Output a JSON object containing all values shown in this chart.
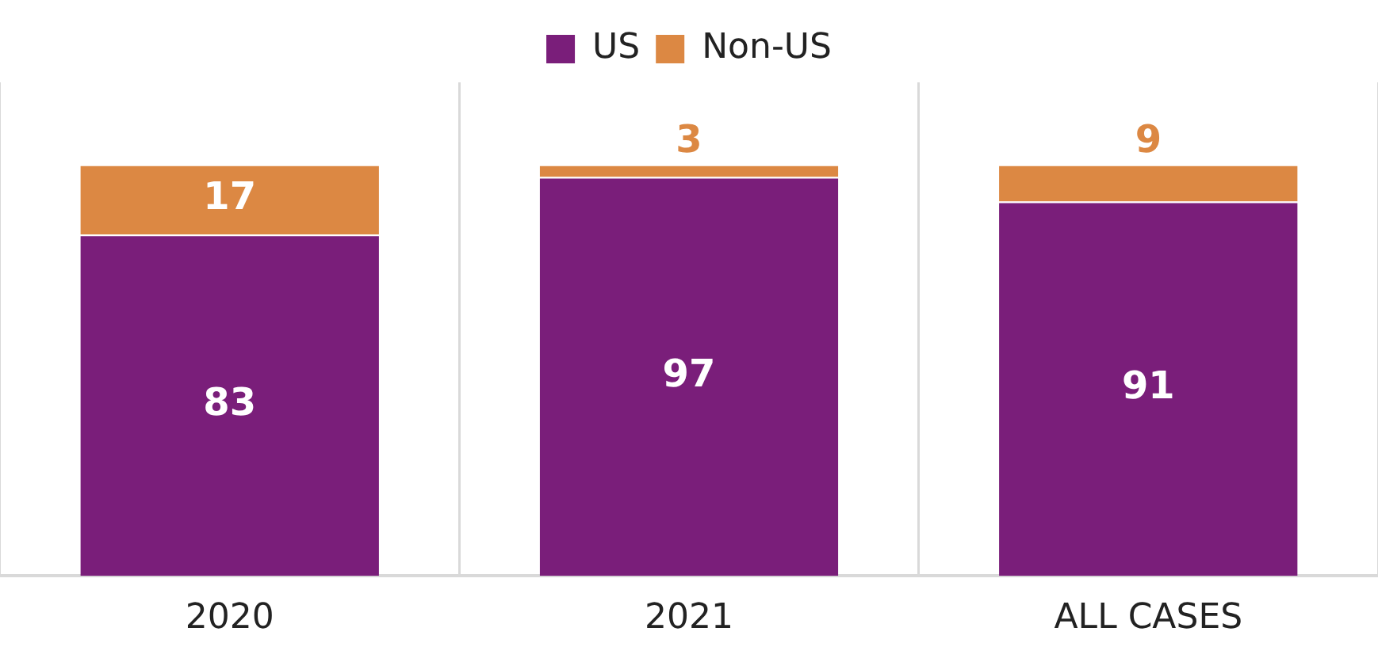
{
  "chart_data": {
    "type": "bar",
    "stacked": true,
    "categories": [
      "2020",
      "2021",
      "ALL CASES"
    ],
    "series": [
      {
        "name": "US",
        "color": "#7a1e7a",
        "values": [
          83,
          97,
          91
        ]
      },
      {
        "name": "Non-US",
        "color": "#dc8843",
        "values": [
          17,
          3,
          9
        ]
      }
    ],
    "data_labels": true,
    "grid": "x",
    "legend": "top"
  }
}
